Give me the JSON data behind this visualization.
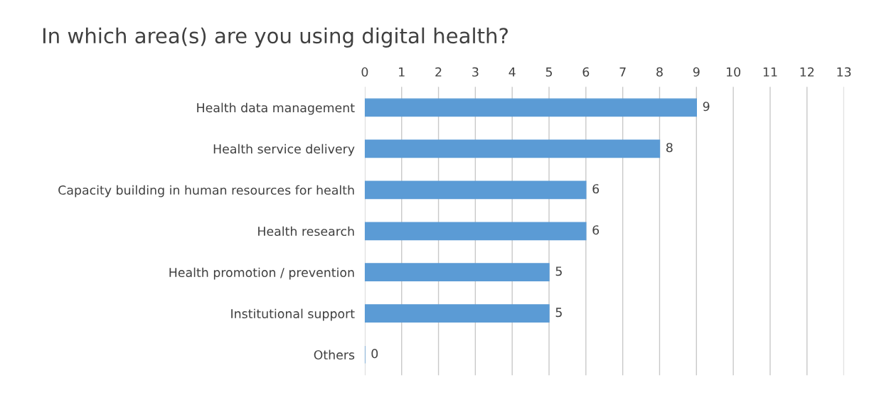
{
  "chart_data": {
    "type": "bar",
    "title": "In which area(s) are you using digital health?",
    "orientation": "horizontal",
    "categories": [
      "Health data management",
      "Health service delivery",
      "Capacity building in human resources for health",
      "Health research",
      "Health promotion / prevention",
      "Institutional support",
      "Others"
    ],
    "values": [
      9,
      8,
      6,
      6,
      5,
      5,
      0
    ],
    "color": "#5b9bd5",
    "xlim": [
      0,
      13
    ],
    "xticks": [
      0,
      1,
      2,
      3,
      4,
      5,
      6,
      7,
      8,
      9,
      10,
      11,
      12,
      13
    ],
    "grid": "x",
    "data_labels": true
  }
}
